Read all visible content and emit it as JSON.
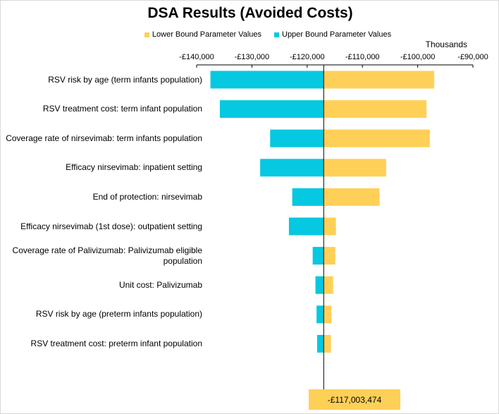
{
  "title": "DSA Results (Avoided Costs)",
  "units_label": "Thousands",
  "colors": {
    "lower": "#FFD058",
    "upper": "#06C8E0",
    "axis": "#000000"
  },
  "baseline_label": "-£117,003,474",
  "chart_data": {
    "type": "bar",
    "orientation": "horizontal",
    "title": "DSA Results (Avoided Costs)",
    "units": "Thousands",
    "baseline": -117003.474,
    "xlim": [
      -140000,
      -90000
    ],
    "x_ticks": [
      {
        "value": -140000,
        "label": "-£140,000"
      },
      {
        "value": -130000,
        "label": "-£130,000"
      },
      {
        "value": -120000,
        "label": "-£120,000"
      },
      {
        "value": -110000,
        "label": "-£110,000"
      },
      {
        "value": -100000,
        "label": "-£100,000"
      },
      {
        "value": -90000,
        "label": "-£90,000"
      }
    ],
    "legend_position": "top",
    "categories": [
      "RSV risk by age (term infants population)",
      "RSV treatment cost: term infant population",
      "Coverage rate of nirsevimab: term infants population",
      "Efficacy nirsevimab: inpatient setting",
      "End of protection: nirsevimab",
      "Efficacy nirsevimab (1st dose): outpatient setting",
      "Coverage rate of Palivizumab: Palivizumab eligible population",
      "Unit cost: Palivizumab",
      "RSV risk by age (preterm infants population)",
      "RSV treatment cost: preterm infant population"
    ],
    "series": [
      {
        "name": "Lower Bound Parameter Values",
        "values": [
          -97000,
          -98400,
          -97800,
          -105700,
          -106900,
          -114800,
          -114900,
          -115300,
          -115600,
          -115700
        ]
      },
      {
        "name": "Upper Bound Parameter Values",
        "values": [
          -137500,
          -135800,
          -126700,
          -128500,
          -122700,
          -123300,
          -119000,
          -118500,
          -118300,
          -118200
        ]
      }
    ]
  }
}
